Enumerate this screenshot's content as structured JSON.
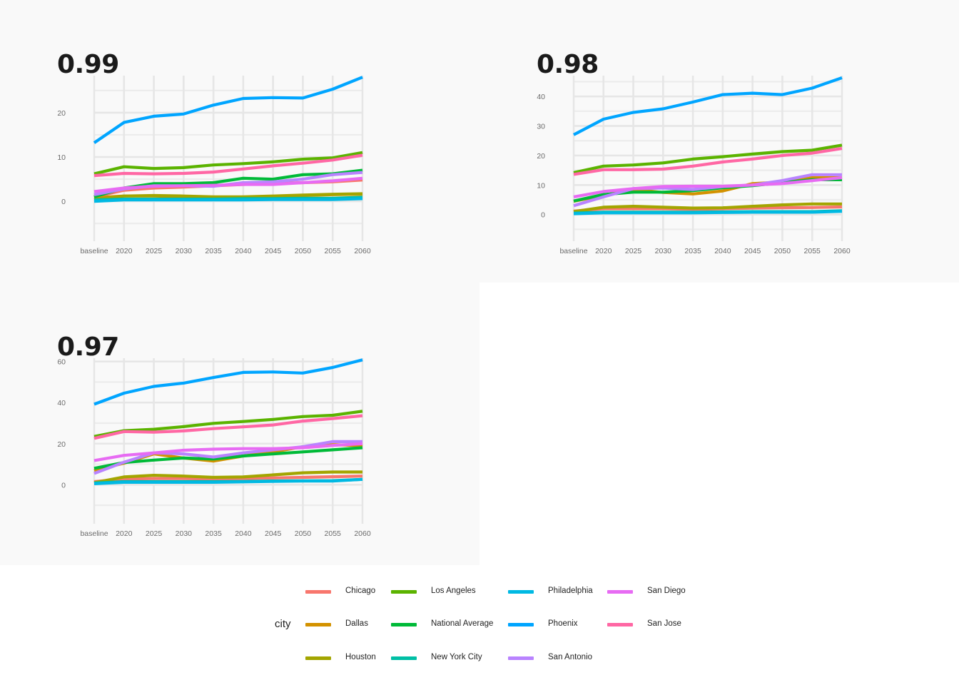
{
  "legend": {
    "title": "city",
    "items": [
      {
        "name": "Chicago",
        "color": "#F8766D"
      },
      {
        "name": "Dallas",
        "color": "#D39200"
      },
      {
        "name": "Houston",
        "color": "#A3A500"
      },
      {
        "name": "Los Angeles",
        "color": "#5BB300"
      },
      {
        "name": "National Average",
        "color": "#00BA38"
      },
      {
        "name": "New York City",
        "color": "#00BFA5"
      },
      {
        "name": "Philadelphia",
        "color": "#00B9E3"
      },
      {
        "name": "Phoenix",
        "color": "#00A5FF"
      },
      {
        "name": "San Antonio",
        "color": "#B983FF"
      },
      {
        "name": "San Diego",
        "color": "#E76BF3"
      },
      {
        "name": "San Jose",
        "color": "#FF67A4"
      }
    ]
  },
  "chart_data": [
    {
      "type": "line",
      "title": "0.99",
      "categories": [
        "baseline",
        "2020",
        "2025",
        "2030",
        "2035",
        "2040",
        "2045",
        "2050",
        "2055",
        "2060"
      ],
      "ylim": [
        -9,
        29
      ],
      "yticks": [
        0,
        10,
        20
      ],
      "series": [
        {
          "name": "Chicago",
          "values": [
            1.0,
            2.5,
            3.0,
            3.2,
            3.5,
            3.8,
            4.0,
            4.2,
            4.4,
            4.8
          ]
        },
        {
          "name": "Dallas",
          "values": [
            0.8,
            1.2,
            1.2,
            1.0,
            0.8,
            0.9,
            1.1,
            1.3,
            1.5,
            1.6
          ]
        },
        {
          "name": "Houston",
          "values": [
            0.4,
            1.2,
            1.3,
            1.2,
            1.0,
            1.0,
            1.2,
            1.4,
            1.6,
            1.7
          ]
        },
        {
          "name": "Los Angeles",
          "values": [
            6.2,
            7.8,
            7.4,
            7.6,
            8.2,
            8.5,
            8.9,
            9.5,
            9.8,
            11.0
          ]
        },
        {
          "name": "National Average",
          "values": [
            1.0,
            3.0,
            4.0,
            4.0,
            4.2,
            5.2,
            5.0,
            6.0,
            6.2,
            7.0
          ]
        },
        {
          "name": "New York City",
          "values": [
            0.3,
            0.5,
            0.5,
            0.5,
            0.5,
            0.6,
            0.6,
            0.7,
            0.7,
            0.9
          ]
        },
        {
          "name": "Philadelphia",
          "values": [
            0.0,
            0.3,
            0.3,
            0.3,
            0.3,
            0.3,
            0.4,
            0.4,
            0.4,
            0.6
          ]
        },
        {
          "name": "Phoenix",
          "values": [
            13.2,
            17.8,
            19.2,
            19.7,
            21.7,
            23.2,
            23.4,
            23.3,
            25.3,
            28.0
          ]
        },
        {
          "name": "San Antonio",
          "values": [
            1.5,
            2.8,
            3.5,
            3.5,
            3.4,
            4.2,
            4.4,
            5.0,
            6.0,
            6.5
          ]
        },
        {
          "name": "San Diego",
          "values": [
            2.2,
            3.0,
            3.4,
            3.5,
            3.6,
            3.8,
            3.8,
            4.2,
            4.6,
            5.2
          ]
        },
        {
          "name": "San Jose",
          "values": [
            5.8,
            6.3,
            6.2,
            6.3,
            6.6,
            7.3,
            8.0,
            8.6,
            9.3,
            10.4
          ]
        }
      ]
    },
    {
      "type": "line",
      "title": "0.98",
      "categories": [
        "baseline",
        "2020",
        "2025",
        "2030",
        "2035",
        "2040",
        "2045",
        "2050",
        "2055",
        "2060"
      ],
      "ylim": [
        -9,
        48
      ],
      "yticks": [
        0,
        10,
        20,
        30,
        40
      ],
      "series": [
        {
          "name": "Chicago",
          "values": [
            1.2,
            2.0,
            2.0,
            2.0,
            1.8,
            2.0,
            2.2,
            2.3,
            2.4,
            2.6
          ]
        },
        {
          "name": "Dallas",
          "values": [
            4.5,
            6.5,
            8.5,
            7.5,
            7.0,
            8.0,
            10.5,
            11.0,
            12.5,
            12.5
          ]
        },
        {
          "name": "Houston",
          "values": [
            1.0,
            2.5,
            2.8,
            2.5,
            2.2,
            2.3,
            2.8,
            3.3,
            3.6,
            3.6
          ]
        },
        {
          "name": "Los Angeles",
          "values": [
            14.2,
            16.4,
            16.8,
            17.5,
            18.8,
            19.6,
            20.5,
            21.3,
            21.8,
            23.5
          ]
        },
        {
          "name": "National Average",
          "values": [
            4.6,
            6.8,
            7.6,
            7.6,
            8.1,
            9.1,
            9.8,
            10.8,
            11.8,
            11.8
          ]
        },
        {
          "name": "New York City",
          "values": [
            0.5,
            0.8,
            0.8,
            0.8,
            0.8,
            0.9,
            1.0,
            1.0,
            1.0,
            1.3
          ]
        },
        {
          "name": "Philadelphia",
          "values": [
            0.3,
            0.6,
            0.6,
            0.6,
            0.6,
            0.7,
            0.8,
            0.8,
            0.8,
            1.1
          ]
        },
        {
          "name": "Phoenix",
          "values": [
            27.0,
            32.3,
            34.6,
            35.8,
            38.1,
            40.6,
            41.1,
            40.6,
            42.8,
            46.3
          ]
        },
        {
          "name": "San Antonio",
          "values": [
            3.0,
            6.0,
            8.8,
            9.0,
            8.5,
            9.5,
            10.0,
            11.5,
            13.5,
            13.5
          ]
        },
        {
          "name": "San Diego",
          "values": [
            6.0,
            7.8,
            8.8,
            9.5,
            9.6,
            9.6,
            10.0,
            10.5,
            11.5,
            12.5
          ]
        },
        {
          "name": "San Jose",
          "values": [
            13.6,
            15.2,
            15.2,
            15.4,
            16.4,
            17.8,
            18.8,
            20.0,
            20.8,
            22.4
          ]
        }
      ]
    },
    {
      "type": "line",
      "title": "0.97",
      "categories": [
        "baseline",
        "2020",
        "2025",
        "2030",
        "2035",
        "2040",
        "2045",
        "2050",
        "2055",
        "2060"
      ],
      "ylim": [
        -19,
        63
      ],
      "yticks": [
        0,
        20,
        40,
        60
      ],
      "series": [
        {
          "name": "Chicago",
          "values": [
            1.5,
            2.8,
            3.0,
            3.0,
            2.8,
            3.0,
            3.3,
            3.6,
            3.9,
            4.2
          ]
        },
        {
          "name": "Dallas",
          "values": [
            7.0,
            10.5,
            15.0,
            13.0,
            11.5,
            14.0,
            16.0,
            18.5,
            19.5,
            19.0
          ]
        },
        {
          "name": "Houston",
          "values": [
            1.0,
            3.8,
            4.6,
            4.2,
            3.6,
            3.8,
            4.8,
            5.8,
            6.2,
            6.2
          ]
        },
        {
          "name": "Los Angeles",
          "values": [
            23.5,
            26.3,
            27.0,
            28.3,
            29.9,
            30.8,
            31.8,
            33.2,
            33.8,
            35.8
          ]
        },
        {
          "name": "National Average",
          "values": [
            8.0,
            10.8,
            12.0,
            13.0,
            12.5,
            14.0,
            15.0,
            16.0,
            17.0,
            18.0
          ]
        },
        {
          "name": "New York City",
          "values": [
            0.8,
            1.5,
            1.5,
            1.5,
            1.5,
            1.6,
            1.8,
            1.9,
            2.0,
            2.6
          ]
        },
        {
          "name": "Philadelphia",
          "values": [
            0.5,
            1.2,
            1.2,
            1.2,
            1.2,
            1.4,
            1.6,
            1.8,
            1.8,
            2.6
          ]
        },
        {
          "name": "Phoenix",
          "values": [
            39.2,
            44.6,
            47.9,
            49.5,
            52.2,
            54.7,
            54.9,
            54.4,
            57.1,
            60.8
          ]
        },
        {
          "name": "San Antonio",
          "values": [
            5.5,
            11.0,
            15.5,
            15.0,
            13.5,
            15.5,
            17.0,
            18.5,
            21.0,
            21.0
          ]
        },
        {
          "name": "San Diego",
          "values": [
            11.8,
            14.3,
            15.5,
            16.8,
            17.3,
            17.6,
            17.6,
            18.0,
            19.1,
            20.0
          ]
        },
        {
          "name": "San Jose",
          "values": [
            22.6,
            25.9,
            25.6,
            26.2,
            27.3,
            28.2,
            29.1,
            31.0,
            32.2,
            33.6
          ]
        }
      ]
    }
  ]
}
